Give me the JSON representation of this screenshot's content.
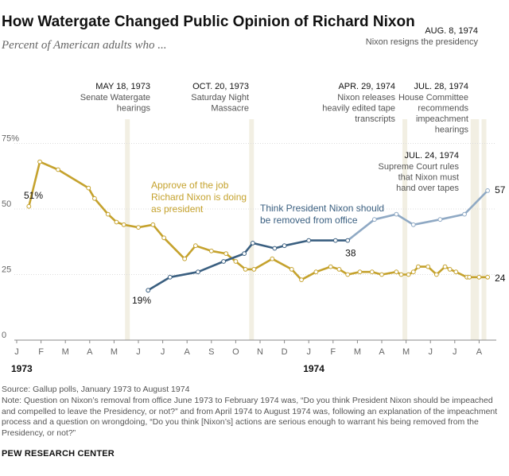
{
  "title": "How Watergate Changed Public Opinion of Richard Nixon",
  "subtitle": "Percent of American adults who ...",
  "chart_data": {
    "type": "line",
    "title": "How Watergate Changed Public Opinion of Richard Nixon",
    "ylim": [
      0,
      80
    ],
    "y_ticks": [
      "75%",
      "50",
      "25",
      "0"
    ],
    "y_tick_values": [
      75,
      50,
      25,
      0
    ],
    "x_ticks": [
      "J",
      "F",
      "M",
      "A",
      "M",
      "J",
      "J",
      "A",
      "S",
      "O",
      "N",
      "D",
      "J",
      "F",
      "M",
      "A",
      "M",
      "J",
      "J",
      "A"
    ],
    "year_labels": [
      {
        "label": "1973",
        "month": 0
      },
      {
        "label": "1974",
        "month": 12
      }
    ],
    "series": [
      {
        "name": "Approve of the job Richard Nixon is doing as president",
        "label_lines": [
          "Approve of the job",
          "Richard Nixon is doing",
          "as president"
        ],
        "color": "#c5a22d",
        "start_label": "51%",
        "end_label": "24",
        "x": [
          0.5,
          0.95,
          1.7,
          2.95,
          3.2,
          3.75,
          4.1,
          4.4,
          5.0,
          5.6,
          6.05,
          6.9,
          7.35,
          8.0,
          8.6,
          9.0,
          9.4,
          9.75,
          10.5,
          11.3,
          11.7,
          12.3,
          12.9,
          13.25,
          13.6,
          14.1,
          14.6,
          15.0,
          15.6,
          15.8,
          16.1,
          16.3,
          16.5,
          16.9,
          17.25,
          17.6,
          17.8,
          18.05,
          18.5,
          18.6,
          19.0,
          19.35
        ],
        "values": [
          51,
          68,
          65,
          58,
          54,
          48,
          45,
          44,
          43,
          44,
          39,
          31,
          36,
          34,
          33,
          30,
          27,
          27,
          31,
          27,
          23,
          26,
          28,
          27,
          25,
          26,
          26,
          25,
          26,
          25,
          25,
          26,
          28,
          28,
          25,
          28,
          27,
          26,
          24,
          24,
          24,
          24
        ]
      },
      {
        "name": "Think President Nixon should be removed from office",
        "label_lines": [
          "Think President Nixon should",
          "be removed from office"
        ],
        "color": "#3a5f80",
        "color_later": "#8fa9c4",
        "start_label": "19%",
        "end_label_mid": "38",
        "end_label": "57",
        "x": [
          5.4,
          6.3,
          7.45,
          8.5,
          9.35,
          9.7,
          10.6,
          11.0,
          12.0,
          13.1,
          13.6,
          14.7,
          15.6,
          16.3,
          17.4,
          18.4,
          19.35
        ],
        "values": [
          19,
          24,
          26,
          30,
          33,
          37,
          35,
          36,
          38,
          38,
          38,
          46,
          48,
          44,
          46,
          48,
          57
        ]
      }
    ],
    "events": [
      {
        "date": "MAY 18, 1973",
        "desc": [
          "Senate Watergate",
          "hearings"
        ],
        "month": 4.55
      },
      {
        "date": "OCT. 20, 1973",
        "desc": [
          "Saturday Night",
          "Massacre"
        ],
        "month": 9.65
      },
      {
        "date": "APR. 29, 1974",
        "desc": [
          "Nixon releases",
          "heavily edited tape",
          "transcripts"
        ],
        "month": 15.95
      },
      {
        "date": "JUL. 28, 1974",
        "desc": [
          "House Committee",
          "recommends",
          "impeachment",
          "hearings"
        ],
        "month": 18.9
      },
      {
        "date": "JUL. 24, 1974",
        "desc": [
          "Supreme Court rules",
          "that Nixon must",
          "hand over tapes"
        ],
        "month": 18.75
      },
      {
        "date": "AUG. 8, 1974",
        "desc": [
          "Nixon resigns the presidency"
        ],
        "month": 19.2
      }
    ]
  },
  "footer": {
    "source": "Source: Gallup polls, January 1973 to August 1974",
    "note": "Note: Question on Nixon’s removal from office June 1973 to February 1974 was, “Do you think President Nixon should be impeached and compelled to leave the Presidency, or not?” and from April 1974 to August 1974 was, following an explanation of the impeachment process and a question on wrongdoing, “Do you think [Nixon’s] actions are serious enough to warrant his being removed from the Presidency, or not?”",
    "brand": "PEW RESEARCH CENTER"
  }
}
